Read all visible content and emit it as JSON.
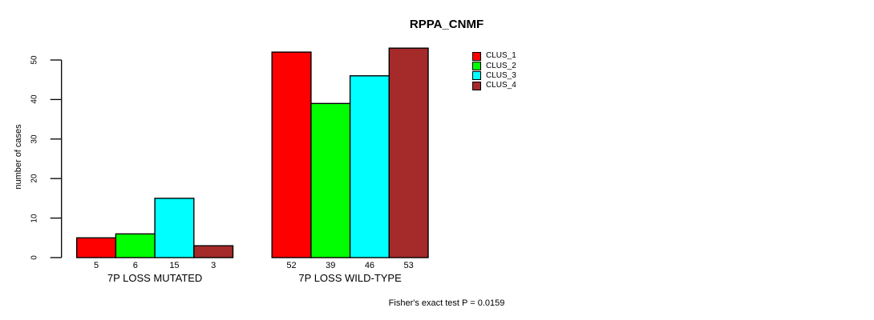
{
  "chart_data": {
    "type": "bar",
    "title": "RPPA_CNMF",
    "xlabel": "",
    "ylabel": "number of cases",
    "ylim": [
      0,
      50
    ],
    "yticks": [
      0,
      10,
      20,
      30,
      40,
      50
    ],
    "grid": false,
    "categories": [
      "7P LOSS MUTATED",
      "7P LOSS WILD-TYPE"
    ],
    "series": [
      {
        "name": "CLUS_1",
        "color": "#FF0000",
        "values": [
          5,
          52
        ]
      },
      {
        "name": "CLUS_2",
        "color": "#00FF00",
        "values": [
          6,
          39
        ]
      },
      {
        "name": "CLUS_3",
        "color": "#00FFFF",
        "values": [
          15,
          46
        ]
      },
      {
        "name": "CLUS_4",
        "color": "#A52A2A",
        "values": [
          3,
          53
        ]
      }
    ],
    "bar_value_labels": [
      [
        5,
        6,
        15,
        3
      ],
      [
        52,
        39,
        46,
        53
      ]
    ],
    "legend": {
      "position": "top-right",
      "entries": [
        "CLUS_1",
        "CLUS_2",
        "CLUS_3",
        "CLUS_4"
      ]
    },
    "annotation": "Fisher's exact test P = 0.0159"
  }
}
